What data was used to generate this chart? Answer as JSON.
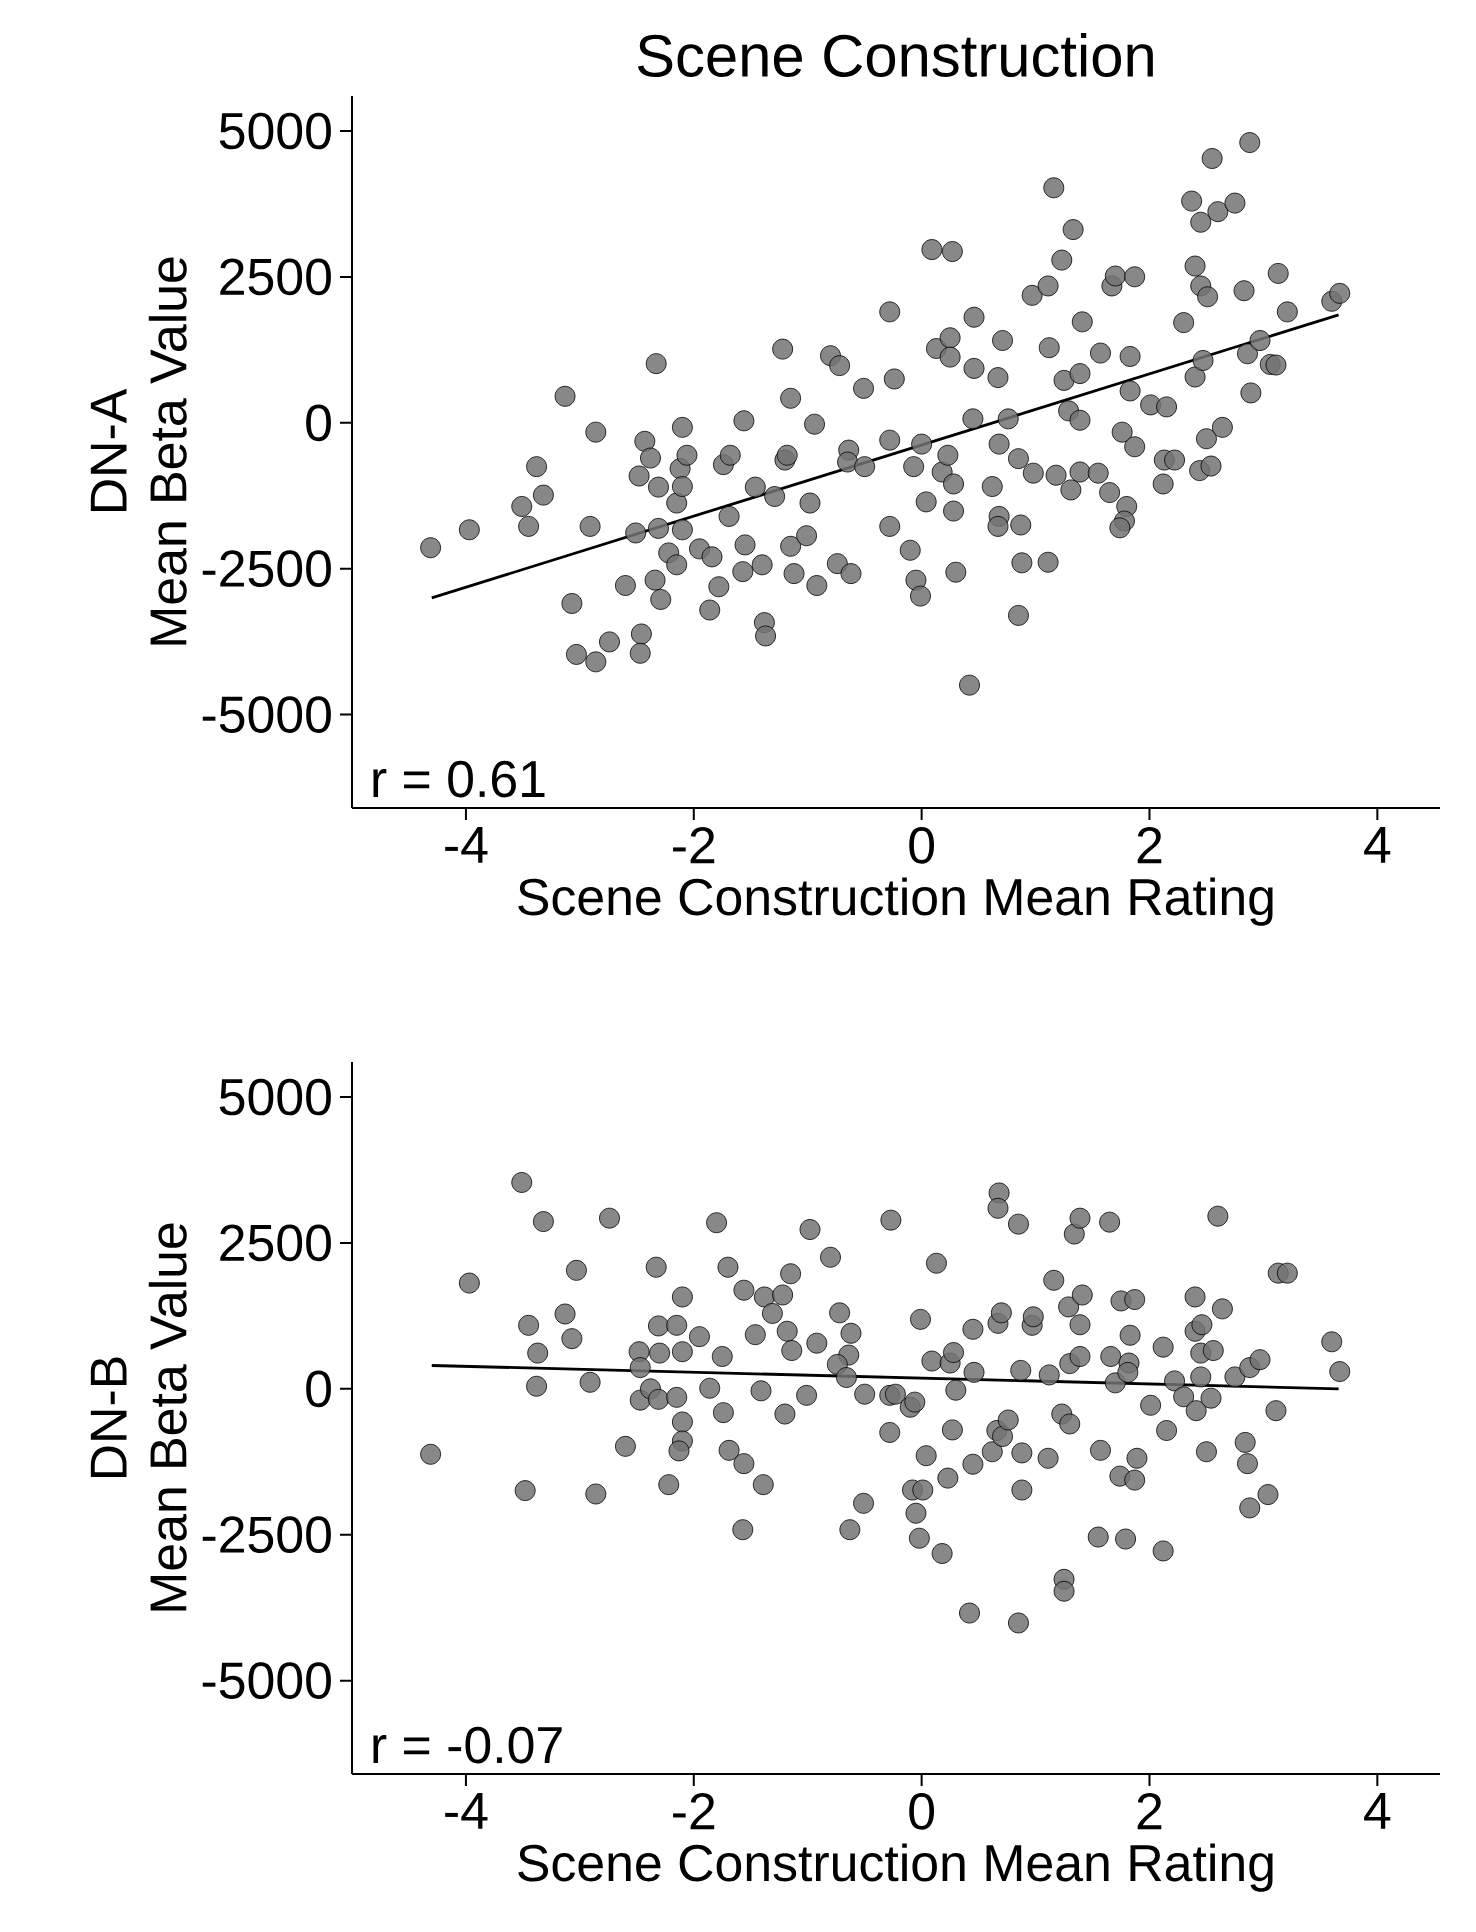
{
  "chart_data": [
    {
      "type": "scatter",
      "title": "Scene Construction",
      "xlabel": "Scene Construction Mean Rating",
      "ylabel": "DN-A\nMean Beta Value",
      "xlim": [
        -5,
        4.55
      ],
      "ylim": [
        -6600,
        5600
      ],
      "xticks": [
        -4,
        -2,
        0,
        2,
        4
      ],
      "yticks": [
        -5000,
        -2500,
        0,
        2500,
        5000
      ],
      "annotations": [
        "r = 0.61"
      ],
      "series": [
        {
          "color": "#737373",
          "marker": "circle",
          "x": [
            -4.31,
            -3.97,
            -3.51,
            -3.45,
            -3.38,
            -3.32,
            -3.13,
            -3.07,
            -3.03,
            -2.91,
            -2.86,
            -2.86,
            -2.74,
            -2.6,
            -2.51,
            -2.48,
            -2.46,
            -2.47,
            -2.43,
            -2.38,
            -2.34,
            -2.33,
            -2.31,
            -2.31,
            -2.29,
            -2.22,
            -2.15,
            -2.15,
            -2.12,
            -2.1,
            -2.1,
            -2.1,
            -2.06,
            -1.95,
            -1.86,
            -1.84,
            -1.78,
            -1.74,
            -1.69,
            -1.68,
            -1.56,
            -1.55,
            -1.57,
            -1.46,
            -1.4,
            -1.38,
            -1.37,
            -1.29,
            -1.22,
            -1.2,
            -1.18,
            -1.15,
            -1.15,
            -1.12,
            -1.01,
            -0.98,
            -0.94,
            -0.92,
            -0.8,
            -0.72,
            -0.74,
            -0.64,
            -0.65,
            -0.62,
            -0.51,
            -0.5,
            -0.28,
            -0.28,
            -0.24,
            -0.28,
            -0.1,
            -0.05,
            -0.01,
            -0.07,
            0.0,
            0.04,
            0.09,
            0.27,
            0.13,
            0.25,
            0.25,
            0.18,
            0.23,
            0.28,
            0.28,
            0.3,
            0.42,
            0.45,
            0.46,
            0.46,
            0.62,
            0.67,
            0.71,
            0.68,
            0.68,
            0.67,
            0.76,
            0.85,
            0.85,
            0.87,
            0.88,
            0.97,
            0.98,
            1.11,
            1.12,
            1.11,
            1.16,
            1.18,
            1.23,
            1.25,
            1.29,
            1.33,
            1.39,
            1.39,
            1.39,
            1.31,
            1.41,
            1.55,
            1.57,
            1.65,
            1.67,
            1.7,
            1.76,
            1.8,
            1.78,
            1.74,
            1.83,
            1.87,
            1.87,
            1.83,
            2.01,
            2.13,
            2.12,
            2.15,
            2.22,
            2.3,
            2.37,
            2.4,
            2.4,
            2.45,
            2.44,
            2.47,
            2.45,
            2.51,
            2.5,
            2.54,
            2.55,
            2.6,
            2.64,
            2.75,
            2.83,
            2.86,
            2.88,
            2.89,
            2.97,
            3.06,
            3.11,
            3.13,
            3.21,
            3.6,
            3.67
          ],
          "values": [
            -2140,
            -1833,
            -1433,
            -1775,
            -751,
            -1239,
            454,
            -3096,
            -3969,
            -1775,
            -160,
            -4096,
            -3754,
            -2788,
            -1887,
            -911,
            -3618,
            -3949,
            -317,
            -604,
            -2696,
            1014,
            -1102,
            -1809,
            -3027,
            -2229,
            -1375,
            -2433,
            -785,
            -78,
            -1092,
            -1833,
            -556,
            -2160,
            -3208,
            -2297,
            -2809,
            -717,
            -1604,
            -556,
            34,
            -2092,
            -2550,
            -1102,
            -2433,
            -3423,
            -3652,
            -1263,
            1263,
            -638,
            -556,
            420,
            -2116,
            -2584,
            -1935,
            -1375,
            -24,
            -2788,
            1150,
            980,
            -2413,
            -468,
            -672,
            -2584,
            590,
            -751,
            1901,
            -1775,
            751,
            -297,
            -2184,
            -2696,
            -2969,
            -751,
            -365,
            -1355,
            2969,
            2935,
            1273,
            1457,
            1126,
            -843,
            -556,
            -1048,
            -1512,
            -2560,
            -4495,
            68,
            1809,
            932,
            -1092,
            775,
            1410,
            -365,
            -1604,
            -1775,
            68,
            -614,
            -3300,
            -1751,
            -2399,
            2184,
            -863,
            2345,
            1287,
            -2389,
            4027,
            -898,
            2788,
            727,
            205,
            3311,
            843,
            44,
            -843,
            -1150,
            1730,
            -863,
            1195,
            -1195,
            2345,
            2515,
            -160,
            -1433,
            -1683,
            -1799,
            1137,
            2502,
            -410,
            546,
            307,
            -638,
            -1048,
            273,
            -638,
            1717,
            3799,
            2686,
            785,
            3437,
            -819,
            1068,
            2345,
            2160,
            -273,
            -741,
            4529,
            3618,
            -78,
            3765,
            2263,
            1184,
            4802,
            512,
            1410,
            1000,
            990,
            2560,
            1901,
            2082,
            2218
          ]
        },
        {
          "type": "line",
          "color": "#000000",
          "x": [
            -4.3,
            3.66
          ],
          "values": [
            -3000,
            1850
          ]
        }
      ]
    },
    {
      "type": "scatter",
      "xlabel": "Scene Construction Mean Rating",
      "ylabel": "DN-B\nMean Beta Value",
      "xlim": [
        -5,
        4.55
      ],
      "ylim": [
        -6600,
        5600
      ],
      "xticks": [
        -4,
        -2,
        0,
        2,
        4
      ],
      "yticks": [
        -5000,
        -2500,
        0,
        2500,
        5000
      ],
      "annotations": [
        "r = -0.07"
      ],
      "series": [
        {
          "color": "#737373",
          "marker": "circle",
          "x": [
            -3.51,
            -3.97,
            -3.32,
            -2.74,
            -3.03,
            -3.45,
            -3.37,
            -3.38,
            -3.13,
            -3.07,
            -2.91,
            -4.31,
            -3.48,
            -2.86,
            -2.6,
            -2.33,
            -2.31,
            -2.3,
            -2.48,
            -2.47,
            -2.47,
            -2.38,
            -2.31,
            -2.15,
            -2.1,
            -2.1,
            -2.15,
            -2.1,
            -2.1,
            -2.13,
            -2.22,
            -1.95,
            -1.86,
            -1.8,
            -1.75,
            -1.74,
            -1.7,
            -1.69,
            -1.56,
            -1.56,
            -1.57,
            -1.46,
            -1.41,
            -1.39,
            -1.38,
            -1.31,
            -1.22,
            -1.18,
            -1.15,
            -1.14,
            -1.2,
            -0.98,
            -1.01,
            -0.92,
            -0.8,
            -0.72,
            -0.62,
            -0.64,
            -0.74,
            -0.66,
            -0.5,
            -0.51,
            -0.63,
            -0.27,
            -0.28,
            -0.28,
            -0.23,
            -0.1,
            -0.06,
            -0.01,
            0.04,
            -0.08,
            0.01,
            -0.05,
            -0.02,
            0.18,
            0.09,
            0.13,
            0.25,
            0.28,
            0.3,
            0.27,
            0.23,
            0.42,
            0.45,
            0.46,
            0.45,
            0.62,
            0.68,
            0.67,
            0.67,
            0.7,
            0.66,
            0.71,
            0.76,
            0.85,
            0.87,
            0.88,
            0.88,
            0.85,
            0.97,
            0.98,
            1.11,
            1.12,
            1.16,
            1.23,
            1.3,
            1.29,
            1.3,
            1.25,
            1.25,
            1.34,
            1.39,
            1.41,
            1.39,
            1.39,
            1.57,
            1.55,
            1.65,
            1.66,
            1.7,
            1.74,
            1.75,
            1.79,
            1.83,
            1.82,
            1.81,
            1.87,
            1.87,
            1.89,
            2.01,
            2.12,
            2.12,
            2.15,
            2.22,
            2.3,
            2.4,
            2.4,
            2.46,
            2.45,
            2.45,
            2.41,
            2.5,
            2.54,
            2.56,
            2.6,
            2.64,
            2.75,
            2.84,
            2.86,
            2.88,
            2.97,
            2.88,
            3.04,
            3.11,
            3.13,
            3.21,
            3.6,
            3.67
          ],
          "values": [
            3536,
            1812,
            2866,
            2924,
            2030,
            1088,
            612,
            44,
            1282,
            860,
            112,
            -1122,
            -1744,
            -1802,
            -986,
            2084,
            1078,
            612,
            636,
            364,
            -194,
            0,
            -180,
            1088,
            1574,
            636,
            -146,
            -568,
            -894,
            -1064,
            -1642,
            894,
            10,
            2846,
            554,
            -408,
            2084,
            -1054,
            1690,
            -1282,
            -2414,
            928,
            -34,
            -1642,
            1574,
            1292,
            1608,
            986,
            1972,
            656,
            -432,
            2730,
            -112,
            782,
            2254,
            1302,
            952,
            578,
            418,
            194,
            -92,
            -1962,
            -2414,
            2890,
            -112,
            -748,
            -92,
            -316,
            -228,
            1190,
            -1146,
            -1734,
            -1734,
            -2132,
            -2560,
            -2822,
            476,
            2152,
            442,
            622,
            -24,
            -704,
            -1530,
            -3842,
            1020,
            282,
            -1292,
            -1078,
            3356,
            3094,
            1122,
            1302,
            -714,
            -816,
            -534,
            2822,
            316,
            -1098,
            -1734,
            -4012,
            1088,
            1234,
            -1190,
            238,
            1860,
            -432,
            -602,
            1404,
            432,
            -3264,
            -3468,
            2652,
            2924,
            1608,
            1098,
            554,
            -1054,
            -2540,
            2856,
            554,
            102,
            -1496,
            1506,
            -2574,
            918,
            442,
            282,
            1530,
            -1564,
            -1190,
            -282,
            714,
            -2778,
            -714,
            136,
            -136,
            1574,
            986,
            1098,
            612,
            204,
            -374,
            -1078,
            -160,
            656,
            2958,
            1370,
            204,
            -918,
            -1282,
            364,
            500,
            -2040,
            -1812,
            -374,
            1982,
            1982,
            806,
            296
          ]
        },
        {
          "type": "line",
          "color": "#000000",
          "x": [
            -4.3,
            3.66
          ],
          "values": [
            400,
            0
          ]
        }
      ]
    }
  ]
}
